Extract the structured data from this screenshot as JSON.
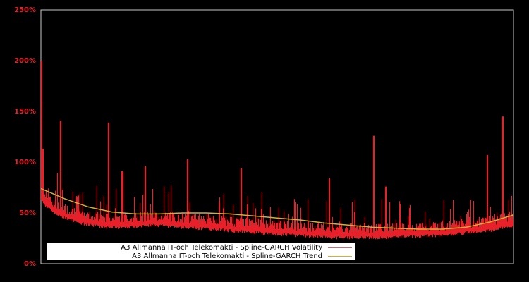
{
  "chart_data": {
    "type": "line",
    "title": "",
    "xlabel": "",
    "ylabel": "",
    "ylim": [
      0,
      250
    ],
    "y_ticks": [
      "0%",
      "50%",
      "100%",
      "150%",
      "200%",
      "250%"
    ],
    "y_tick_values": [
      0,
      50,
      100,
      150,
      200,
      250
    ],
    "grid": false,
    "legend_position": "lower-left",
    "background": "#000000",
    "frame_color": "#c8c8c8",
    "tick_label_color": "#e8202a",
    "series": [
      {
        "name": "A3 Allmanna IT-och Telekomakti - Spline-GARCH Volatility",
        "color": "#e8202a",
        "description": "daily volatility, high-frequency series with spikes",
        "x_frac": [
          0.0,
          0.002,
          0.004,
          0.01,
          0.02,
          0.03,
          0.04,
          0.05,
          0.06,
          0.07,
          0.08,
          0.09,
          0.1,
          0.11,
          0.12,
          0.13,
          0.14,
          0.15,
          0.16,
          0.17,
          0.18,
          0.19,
          0.2,
          0.21,
          0.22,
          0.23,
          0.24,
          0.25,
          0.26,
          0.27,
          0.28,
          0.29,
          0.3,
          0.31,
          0.32,
          0.33,
          0.34,
          0.35,
          0.36,
          0.37,
          0.38,
          0.39,
          0.4,
          0.41,
          0.42,
          0.43,
          0.44,
          0.45,
          0.46,
          0.47,
          0.48,
          0.49,
          0.5,
          0.51,
          0.52,
          0.53,
          0.54,
          0.55,
          0.56,
          0.57,
          0.58,
          0.59,
          0.6,
          0.61,
          0.62,
          0.63,
          0.64,
          0.65,
          0.66,
          0.67,
          0.68,
          0.69,
          0.7,
          0.71,
          0.72,
          0.73,
          0.74,
          0.75,
          0.76,
          0.77,
          0.78,
          0.79,
          0.8,
          0.81,
          0.82,
          0.83,
          0.84,
          0.85,
          0.86,
          0.87,
          0.88,
          0.89,
          0.9,
          0.91,
          0.92,
          0.93,
          0.94,
          0.95,
          0.96,
          0.97,
          0.98,
          0.99,
          1.0
        ],
        "peaks": [
          {
            "x": 0.001,
            "y": 200
          },
          {
            "x": 0.003,
            "y": 113
          },
          {
            "x": 0.041,
            "y": 141
          },
          {
            "x": 0.143,
            "y": 139
          },
          {
            "x": 0.172,
            "y": 91
          },
          {
            "x": 0.22,
            "y": 96
          },
          {
            "x": 0.31,
            "y": 103
          },
          {
            "x": 0.424,
            "y": 94
          },
          {
            "x": 0.61,
            "y": 84
          },
          {
            "x": 0.705,
            "y": 126
          },
          {
            "x": 0.73,
            "y": 76
          },
          {
            "x": 0.945,
            "y": 107
          },
          {
            "x": 0.978,
            "y": 145
          }
        ],
        "baseline": [
          67,
          60,
          58,
          54,
          52,
          50,
          48,
          46,
          45,
          44,
          43,
          42,
          42,
          41,
          40,
          40,
          40,
          40,
          40,
          40,
          41,
          41,
          41,
          42,
          42,
          42,
          42,
          41,
          41,
          41,
          40,
          40,
          40,
          40,
          39,
          39,
          39,
          38,
          38,
          38,
          37,
          37,
          36,
          36,
          36,
          35,
          35,
          35,
          34,
          34,
          34,
          33,
          33,
          33,
          33,
          32,
          32,
          32,
          31,
          31,
          31,
          31,
          30,
          30,
          30,
          30,
          30,
          30,
          30,
          30,
          30,
          30,
          30,
          30,
          30,
          30,
          30,
          31,
          31,
          31,
          31,
          31,
          31,
          32,
          32,
          32,
          32,
          33,
          33,
          33,
          34,
          34,
          35,
          35,
          36,
          36,
          37,
          37,
          38,
          39,
          40,
          40,
          41
        ]
      },
      {
        "name": "A3 Allmanna IT-och Telekomakti - Spline-GARCH Trend",
        "color": "#d4b030",
        "x_frac": [
          0.0,
          0.05,
          0.1,
          0.15,
          0.2,
          0.25,
          0.3,
          0.35,
          0.4,
          0.45,
          0.5,
          0.55,
          0.6,
          0.65,
          0.7,
          0.75,
          0.8,
          0.85,
          0.9,
          0.95,
          1.0
        ],
        "values": [
          74,
          64,
          56,
          51,
          49,
          49,
          50,
          50,
          49,
          47,
          45,
          43,
          40,
          38,
          36,
          35,
          34,
          34,
          36,
          41,
          48
        ]
      }
    ]
  },
  "legend": {
    "items": [
      {
        "label": "A3 Allmanna IT-och Telekomakti - Spline-GARCH Volatility",
        "color": "#e8202a"
      },
      {
        "label": "A3 Allmanna IT-och Telekomakti - Spline-GARCH Trend",
        "color": "#d4b030"
      }
    ]
  },
  "axis": {
    "y_labels": [
      "250%",
      "200%",
      "150%",
      "100%",
      "50%",
      "0%"
    ]
  }
}
